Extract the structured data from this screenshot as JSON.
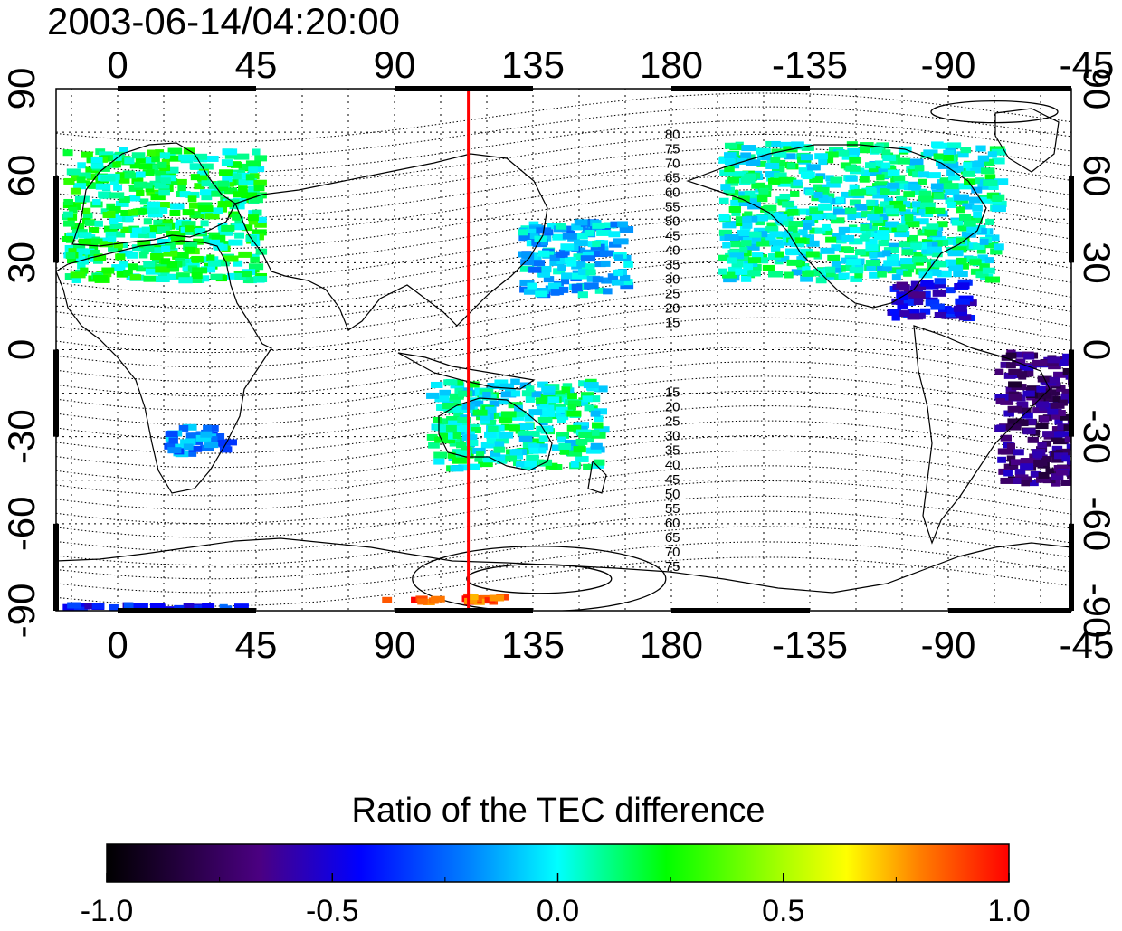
{
  "title": "2003-06-14/04:20:00",
  "top_axis_labels": [
    "0",
    "45",
    "90",
    "135",
    "180",
    "-135",
    "-90",
    "-45"
  ],
  "bottom_axis_labels": [
    "0",
    "45",
    "90",
    "135",
    "180",
    "-135",
    "-90",
    "-45"
  ],
  "left_axis_labels": [
    "90",
    "60",
    "30",
    "0",
    "-30",
    "-60",
    "-90"
  ],
  "right_axis_labels": [
    "90",
    "60",
    "30",
    "0",
    "-30",
    "-60",
    "-90"
  ],
  "contour_labels_north": [
    "80",
    "75",
    "70",
    "65",
    "60",
    "55",
    "50",
    "45",
    "40",
    "35",
    "30",
    "25",
    "20",
    "15"
  ],
  "contour_labels_south": [
    "15",
    "20",
    "25",
    "30",
    "35",
    "40",
    "45",
    "50",
    "55",
    "60",
    "65",
    "70",
    "75"
  ],
  "colorbar": {
    "title": "Ratio of the TEC difference",
    "tick_labels": [
      "-1.0",
      "-0.5",
      "0.0",
      "0.5",
      "1.0"
    ],
    "min": -1.0,
    "max": 1.0,
    "colors": [
      "#000000",
      "#4b0082",
      "#0000ff",
      "#00ffff",
      "#00ff00",
      "#ffff00",
      "#ff0000"
    ]
  },
  "marker_line": {
    "longitude": 114,
    "color": "#ff0000"
  },
  "chart_data": {
    "type": "heatmap",
    "title": "2003-06-14/04:20:00",
    "xlim": [
      -20,
      310
    ],
    "ylim": [
      -90,
      90
    ],
    "colorbar_label": "Ratio of the TEC difference",
    "colorbar_range": [
      -1.0,
      1.0
    ],
    "marker_longitude": 114,
    "regions": [
      {
        "lon": [
          -18,
          45
        ],
        "lat": [
          25,
          70
        ],
        "value": 0.15
      },
      {
        "lon": [
          130,
          165
        ],
        "lat": [
          20,
          45
        ],
        "value": -0.1
      },
      {
        "lon": [
          195,
          285
        ],
        "lat": [
          25,
          72
        ],
        "value": 0.05
      },
      {
        "lon": [
          250,
          275
        ],
        "lat": [
          12,
          25
        ],
        "value": -0.5
      },
      {
        "lon": [
          285,
          315
        ],
        "lat": [
          -45,
          0
        ],
        "value": -0.7
      },
      {
        "lon": [
          15,
          35
        ],
        "lat": [
          -35,
          -25
        ],
        "value": -0.2
      },
      {
        "lon": [
          100,
          155
        ],
        "lat": [
          -40,
          -10
        ],
        "value": 0.05
      },
      {
        "lon": [
          85,
          125
        ],
        "lat": [
          -86,
          -84
        ],
        "value": 0.9
      },
      {
        "lon": [
          -20,
          40
        ],
        "lat": [
          -89,
          -87
        ],
        "value": -0.4
      }
    ]
  }
}
